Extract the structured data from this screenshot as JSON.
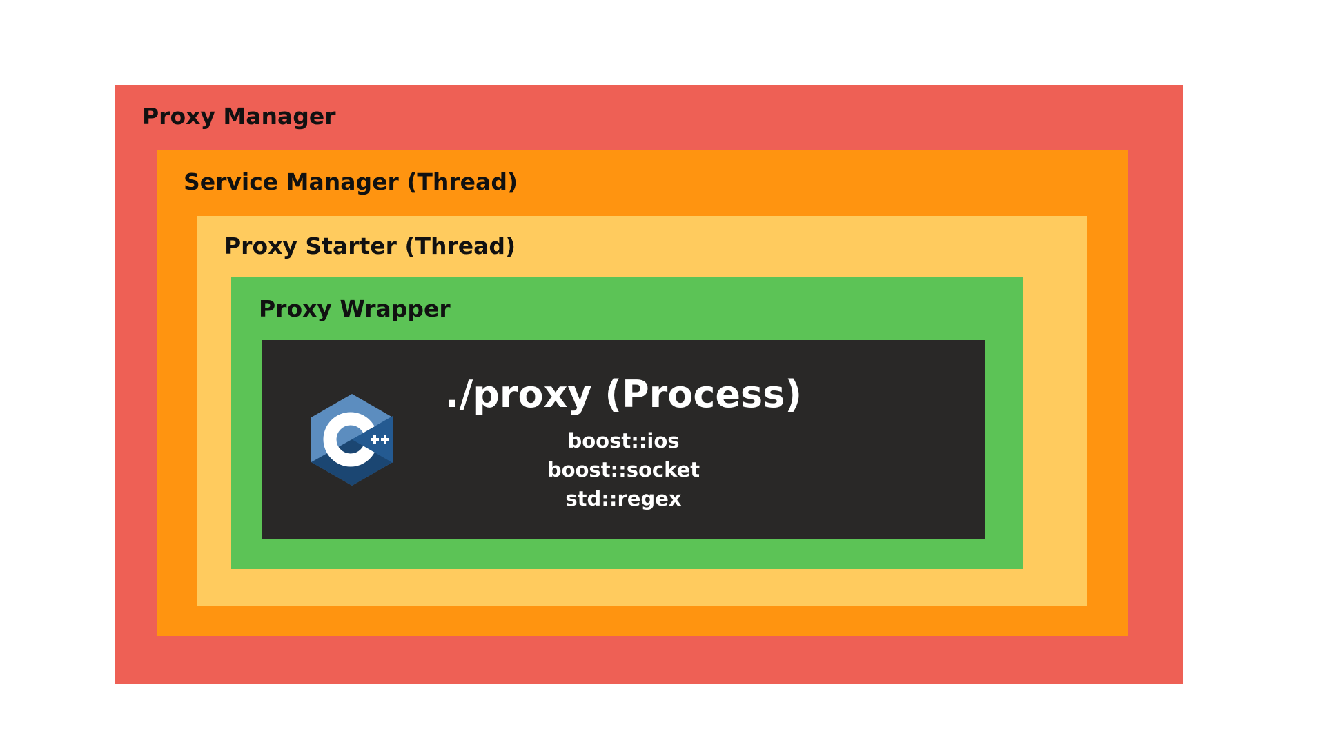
{
  "layers": {
    "proxy_manager": {
      "label": "Proxy Manager",
      "color": "#EE6055"
    },
    "service_manager": {
      "label": "Service Manager (Thread)",
      "color": "#FF9410"
    },
    "proxy_starter": {
      "label": "Proxy Starter (Thread)",
      "color": "#FFCB5E"
    },
    "proxy_wrapper": {
      "label": "Proxy Wrapper",
      "color": "#5CC356"
    },
    "process": {
      "title": "./proxy (Process)",
      "color": "#292827",
      "logo": "cpp-logo-icon",
      "libraries": [
        "boost::ios",
        "boost::socket",
        "std::regex"
      ]
    }
  }
}
